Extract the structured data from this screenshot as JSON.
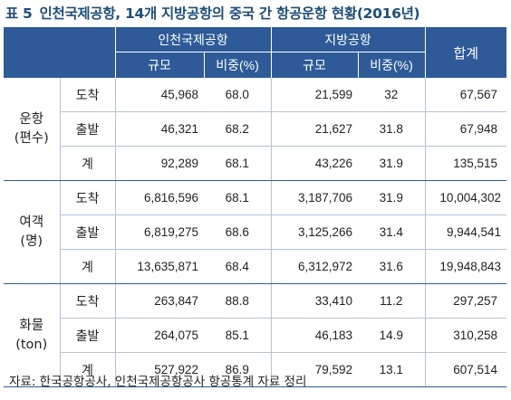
{
  "title": {
    "number": "표 5",
    "text": "인천국제공항, 14개 지방공항의 중국 간 항공운항 현황(2016년)"
  },
  "headers": {
    "incheon": "인천국제공항",
    "local": "지방공항",
    "total": "합계",
    "scale": "규모",
    "share": "비중(%)"
  },
  "groups": [
    {
      "name": "운항",
      "unit": "(편수)",
      "rows": [
        {
          "type": "도착",
          "incheon_scale": "45,968",
          "incheon_share": "68.0",
          "local_scale": "21,599",
          "local_share": "32",
          "total": "67,567"
        },
        {
          "type": "출발",
          "incheon_scale": "46,321",
          "incheon_share": "68.2",
          "local_scale": "21,627",
          "local_share": "31.8",
          "total": "67,948"
        },
        {
          "type": "계",
          "incheon_scale": "92,289",
          "incheon_share": "68.1",
          "local_scale": "43,226",
          "local_share": "31.9",
          "total": "135,515"
        }
      ]
    },
    {
      "name": "여객",
      "unit": "(명)",
      "rows": [
        {
          "type": "도착",
          "incheon_scale": "6,816,596",
          "incheon_share": "68.1",
          "local_scale": "3,187,706",
          "local_share": "31.9",
          "total": "10,004,302"
        },
        {
          "type": "출발",
          "incheon_scale": "6,819,275",
          "incheon_share": "68.6",
          "local_scale": "3,125,266",
          "local_share": "31.4",
          "total": "9,944,541"
        },
        {
          "type": "계",
          "incheon_scale": "13,635,871",
          "incheon_share": "68.4",
          "local_scale": "6,312,972",
          "local_share": "31.6",
          "total": "19,948,843"
        }
      ]
    },
    {
      "name": "화물",
      "unit": "(ton)",
      "rows": [
        {
          "type": "도착",
          "incheon_scale": "263,847",
          "incheon_share": "88.8",
          "local_scale": "33,410",
          "local_share": "11.2",
          "total": "297,257"
        },
        {
          "type": "출발",
          "incheon_scale": "264,075",
          "incheon_share": "85.1",
          "local_scale": "46,183",
          "local_share": "14.9",
          "total": "310,258"
        },
        {
          "type": "계",
          "incheon_scale": "527,922",
          "incheon_share": "86.9",
          "local_scale": "79,592",
          "local_share": "13.1",
          "total": "607,514"
        }
      ]
    }
  ],
  "source": "자료: 한국공항공사, 인천국제공항공사 항공통계 자료 정리",
  "colors": {
    "header_bg": "#2e5b98",
    "title": "#1f4e79"
  }
}
